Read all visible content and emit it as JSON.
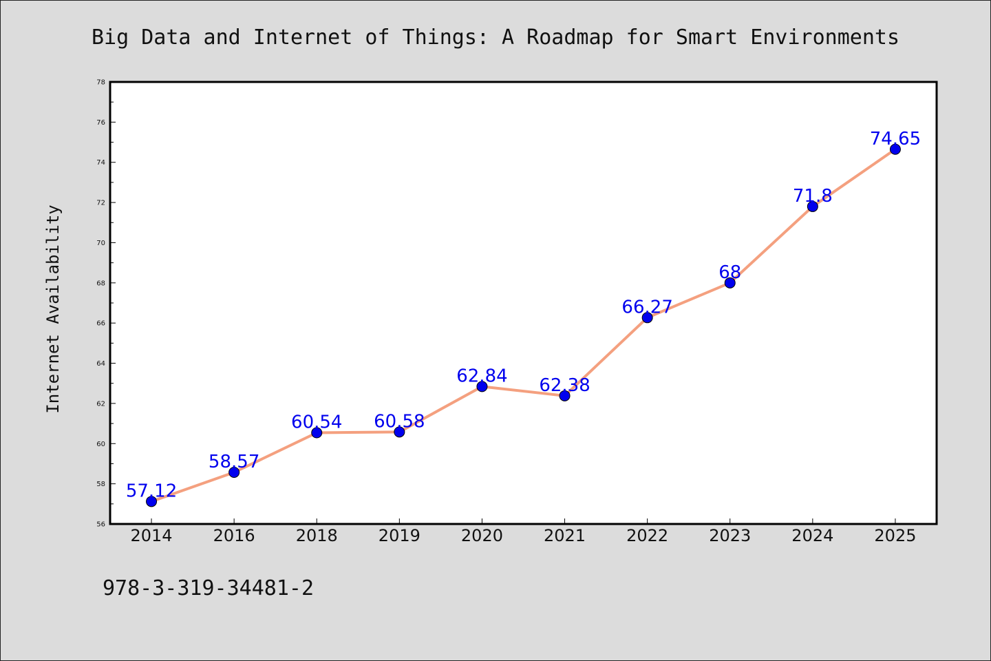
{
  "chart_data": {
    "type": "line",
    "title": "Big Data and Internet of Things: A Roadmap for Smart Environments",
    "xlabel": "",
    "ylabel": "Internet Availability",
    "categories": [
      "2014",
      "2016",
      "2018",
      "2019",
      "2020",
      "2021",
      "2022",
      "2023",
      "2024",
      "2025"
    ],
    "series": [
      {
        "values": [
          57.12,
          58.57,
          60.54,
          60.58,
          62.84,
          62.38,
          66.27,
          68,
          71.8,
          74.65
        ],
        "labels": [
          "57.12",
          "58.57",
          "60.54",
          "60.58",
          "62.84",
          "62.38",
          "66.27",
          "68",
          "71.8",
          "74.65"
        ],
        "line_color": "#f4a07f",
        "marker_color": "#0000ee"
      }
    ],
    "ylim": [
      56,
      78
    ],
    "yticks": [
      56,
      58,
      60,
      62,
      64,
      66,
      68,
      70,
      72,
      74,
      76,
      78
    ],
    "grid": false,
    "legend": "none"
  },
  "footer": {
    "isbn": "978-3-319-34481-2"
  },
  "colors": {
    "background": "#dcdcdc",
    "plot_background": "#ffffff",
    "axis": "#000000"
  }
}
